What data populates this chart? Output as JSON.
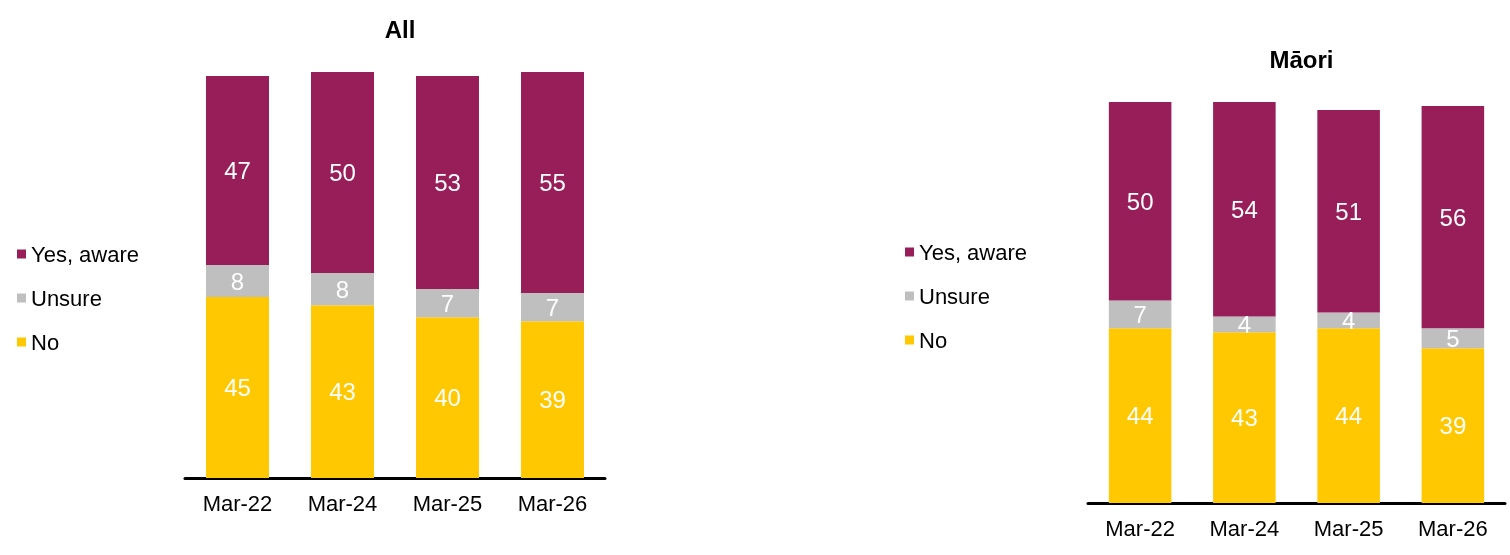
{
  "chart_data": [
    {
      "type": "bar",
      "title": "All",
      "categories": [
        "Mar-22",
        "Mar-24",
        "Mar-25",
        "Mar-26"
      ],
      "stacked": true,
      "data_labels": true,
      "legend": "left",
      "grid": false,
      "series": [
        {
          "name": "No",
          "color": "#ffc800",
          "values": [
            45,
            43,
            40,
            39
          ]
        },
        {
          "name": "Unsure",
          "color": "#bfbfbf",
          "values": [
            8,
            8,
            7,
            7
          ]
        },
        {
          "name": "Yes, aware",
          "color": "#981e5a",
          "values": [
            47,
            50,
            53,
            55
          ]
        }
      ]
    },
    {
      "type": "bar",
      "title": "Māori",
      "categories": [
        "Mar-22",
        "Mar-24",
        "Mar-25",
        "Mar-26"
      ],
      "stacked": true,
      "data_labels": true,
      "legend": "left",
      "grid": false,
      "series": [
        {
          "name": "No",
          "color": "#ffc800",
          "values": [
            44,
            43,
            44,
            39
          ]
        },
        {
          "name": "Unsure",
          "color": "#bfbfbf",
          "values": [
            7,
            4,
            4,
            5
          ]
        },
        {
          "name": "Yes, aware",
          "color": "#981e5a",
          "values": [
            50,
            54,
            51,
            56
          ]
        }
      ]
    }
  ]
}
